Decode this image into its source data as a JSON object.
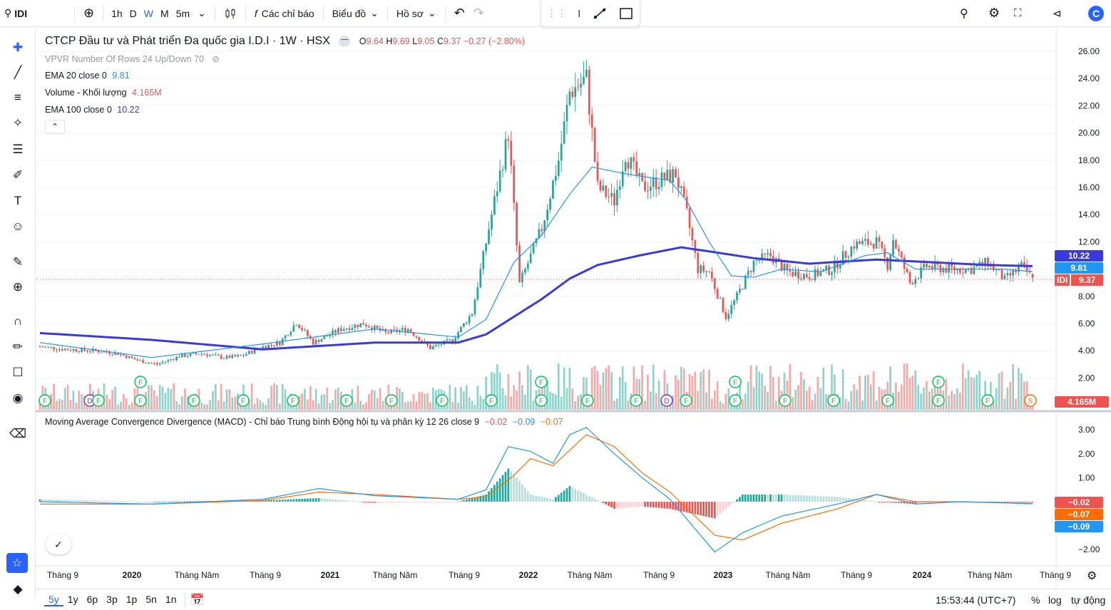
{
  "toolbar": {
    "symbol": "IDI",
    "intervals": [
      "1h",
      "D",
      "W",
      "M",
      "5m"
    ],
    "active_interval": "W",
    "indicators": "Các chỉ báo",
    "chart_menu": "Biểu đồ",
    "profile": "Hồ sơ",
    "logo_letter": "C"
  },
  "legend": {
    "title": "CTCP Đầu tư và Phát triển Đa quốc gia I.D.I · 1W · HSX",
    "o_label": "O",
    "o": "9.64",
    "h_label": "H",
    "h": "9.69",
    "l_label": "L",
    "l": "9.05",
    "c_label": "C",
    "c": "9.37",
    "change": "−0.27 (−2.80%)",
    "vpvr": "VPVR Number Of Rows 24 Up/Down 70",
    "ema20_label": "EMA 20 close 0",
    "ema20": "9.81",
    "vol_label": "Volume - Khối lượng",
    "vol": "4.165M",
    "ema100_label": "EMA 100 close 0",
    "ema100": "10.22",
    "macd_label": "Moving Average Convergence Divergence (MACD) - Chỉ báo Trung bình Động hội tụ và phân kỳ 12 26 close 9",
    "macd_hist": "−0.02",
    "macd_line": "−0.09",
    "macd_signal": "−0.07"
  },
  "price_axis": {
    "ticks": [
      "26.00",
      "24.00",
      "22.00",
      "20.00",
      "18.00",
      "16.00",
      "14.00",
      "12.00",
      "8.00",
      "6.00",
      "4.00",
      "2.00"
    ],
    "tags": {
      "ema100": "10.22",
      "ema20": "9.81",
      "symbol": "IDI",
      "price": "9.37",
      "volume": "4.165M"
    }
  },
  "macd_axis": {
    "ticks": [
      "3.00",
      "2.00",
      "1.00",
      "−2.00"
    ],
    "tags": {
      "hist": "−0.02",
      "signal": "−0.07",
      "macd": "−0.09"
    }
  },
  "time_axis": [
    "Tháng 9",
    "2020",
    "Tháng Năm",
    "Tháng 9",
    "2021",
    "Tháng Năm",
    "Tháng 9",
    "2022",
    "Tháng Năm",
    "Tháng 9",
    "2023",
    "Tháng Năm",
    "Tháng 9",
    "2024",
    "Tháng Năm",
    "Tháng 9"
  ],
  "bottom": {
    "ranges": [
      "5y",
      "1y",
      "6p",
      "3p",
      "1p",
      "5n",
      "1n"
    ],
    "active_range": "5y",
    "time": "15:53:44 (UTC+7)",
    "percent": "%",
    "log": "log",
    "auto": "tự động"
  },
  "colors": {
    "up": "#26a69a",
    "down": "#ef5350",
    "ema20": "#2196f3",
    "ema100": "#3a3adb",
    "macd": "#2196f3",
    "signal": "#ff6d00",
    "accent": "#2962ff"
  },
  "chart_data": {
    "type": "candlestick",
    "interval": "1W",
    "ohlc_last": {
      "open": 9.64,
      "high": 9.69,
      "low": 9.05,
      "close": 9.37
    },
    "price_path": [
      [
        0,
        4.3
      ],
      [
        10,
        4.1
      ],
      [
        20,
        4.0
      ],
      [
        28,
        3.8
      ],
      [
        35,
        3.3
      ],
      [
        42,
        3.0
      ],
      [
        50,
        3.6
      ],
      [
        58,
        3.8
      ],
      [
        66,
        3.5
      ],
      [
        72,
        3.6
      ],
      [
        80,
        4.3
      ],
      [
        86,
        4.6
      ],
      [
        92,
        6.1
      ],
      [
        98,
        4.6
      ],
      [
        108,
        5.6
      ],
      [
        116,
        6.0
      ],
      [
        124,
        5.3
      ],
      [
        132,
        5.6
      ],
      [
        140,
        4.2
      ],
      [
        148,
        4.8
      ],
      [
        155,
        6.8
      ],
      [
        162,
        14.0
      ],
      [
        168,
        20.0
      ],
      [
        172,
        8.9
      ],
      [
        180,
        13.0
      ],
      [
        186,
        18.0
      ],
      [
        190,
        23.0
      ],
      [
        196,
        24.0
      ],
      [
        200,
        16.0
      ],
      [
        206,
        15.0
      ],
      [
        210,
        18.5
      ],
      [
        216,
        16.0
      ],
      [
        222,
        16.5
      ],
      [
        228,
        17.0
      ],
      [
        232,
        14.0
      ],
      [
        236,
        10.0
      ],
      [
        240,
        9.8
      ],
      [
        246,
        6.5
      ],
      [
        250,
        8.0
      ],
      [
        256,
        10.5
      ],
      [
        262,
        11.0
      ],
      [
        268,
        9.8
      ],
      [
        276,
        9.5
      ],
      [
        284,
        10.0
      ],
      [
        292,
        11.8
      ],
      [
        300,
        12.0
      ],
      [
        304,
        10.3
      ],
      [
        306,
        12.2
      ],
      [
        312,
        9.0
      ],
      [
        318,
        10.2
      ],
      [
        326,
        10.0
      ],
      [
        334,
        10.0
      ],
      [
        340,
        10.5
      ],
      [
        346,
        9.2
      ],
      [
        352,
        10.2
      ],
      [
        356,
        9.37
      ]
    ],
    "ema20_path": [
      [
        0,
        4.6
      ],
      [
        40,
        3.5
      ],
      [
        80,
        4.5
      ],
      [
        120,
        5.6
      ],
      [
        150,
        5.0
      ],
      [
        160,
        6.3
      ],
      [
        170,
        10.5
      ],
      [
        180,
        12.5
      ],
      [
        190,
        15.5
      ],
      [
        198,
        17.5
      ],
      [
        210,
        17.0
      ],
      [
        226,
        16.5
      ],
      [
        232,
        15.0
      ],
      [
        240,
        12.0
      ],
      [
        248,
        9.5
      ],
      [
        256,
        9.4
      ],
      [
        266,
        10.0
      ],
      [
        280,
        9.8
      ],
      [
        296,
        11.0
      ],
      [
        304,
        11.2
      ],
      [
        314,
        10.0
      ],
      [
        330,
        10.0
      ],
      [
        346,
        10.0
      ],
      [
        356,
        9.81
      ]
    ],
    "ema100_path": [
      [
        0,
        5.3
      ],
      [
        40,
        4.8
      ],
      [
        80,
        4.1
      ],
      [
        120,
        4.6
      ],
      [
        150,
        4.6
      ],
      [
        160,
        5.2
      ],
      [
        170,
        6.5
      ],
      [
        180,
        7.8
      ],
      [
        190,
        9.3
      ],
      [
        200,
        10.3
      ],
      [
        215,
        11.0
      ],
      [
        230,
        11.6
      ],
      [
        240,
        11.3
      ],
      [
        256,
        10.8
      ],
      [
        276,
        10.4
      ],
      [
        300,
        10.7
      ],
      [
        320,
        10.5
      ],
      [
        340,
        10.3
      ],
      [
        356,
        10.22
      ]
    ],
    "macd_path": [
      [
        0,
        0.0
      ],
      [
        40,
        -0.1
      ],
      [
        80,
        0.1
      ],
      [
        100,
        0.55
      ],
      [
        120,
        0.25
      ],
      [
        150,
        0.1
      ],
      [
        160,
        0.5
      ],
      [
        168,
        2.3
      ],
      [
        176,
        2.1
      ],
      [
        184,
        1.6
      ],
      [
        190,
        2.8
      ],
      [
        196,
        3.1
      ],
      [
        206,
        2.0
      ],
      [
        216,
        1.0
      ],
      [
        226,
        0.1
      ],
      [
        234,
        -1.0
      ],
      [
        242,
        -2.1
      ],
      [
        252,
        -1.3
      ],
      [
        266,
        -0.6
      ],
      [
        286,
        -0.1
      ],
      [
        300,
        0.3
      ],
      [
        314,
        -0.1
      ],
      [
        330,
        0.0
      ],
      [
        346,
        -0.05
      ],
      [
        356,
        -0.09
      ]
    ],
    "signal_path": [
      [
        0,
        -0.1
      ],
      [
        40,
        -0.1
      ],
      [
        80,
        0.05
      ],
      [
        100,
        0.4
      ],
      [
        120,
        0.3
      ],
      [
        150,
        0.1
      ],
      [
        160,
        0.2
      ],
      [
        170,
        1.1
      ],
      [
        176,
        1.8
      ],
      [
        184,
        1.5
      ],
      [
        196,
        2.8
      ],
      [
        206,
        2.3
      ],
      [
        216,
        1.2
      ],
      [
        226,
        0.4
      ],
      [
        234,
        -0.5
      ],
      [
        242,
        -1.4
      ],
      [
        252,
        -1.6
      ],
      [
        266,
        -0.9
      ],
      [
        286,
        -0.3
      ],
      [
        300,
        0.3
      ],
      [
        314,
        0.0
      ],
      [
        330,
        0.0
      ],
      [
        346,
        -0.05
      ],
      [
        356,
        -0.07
      ]
    ],
    "volume_last": "4.165M",
    "price_ylim": [
      1,
      27
    ],
    "macd_ylim": [
      -2.4,
      3.3
    ]
  }
}
